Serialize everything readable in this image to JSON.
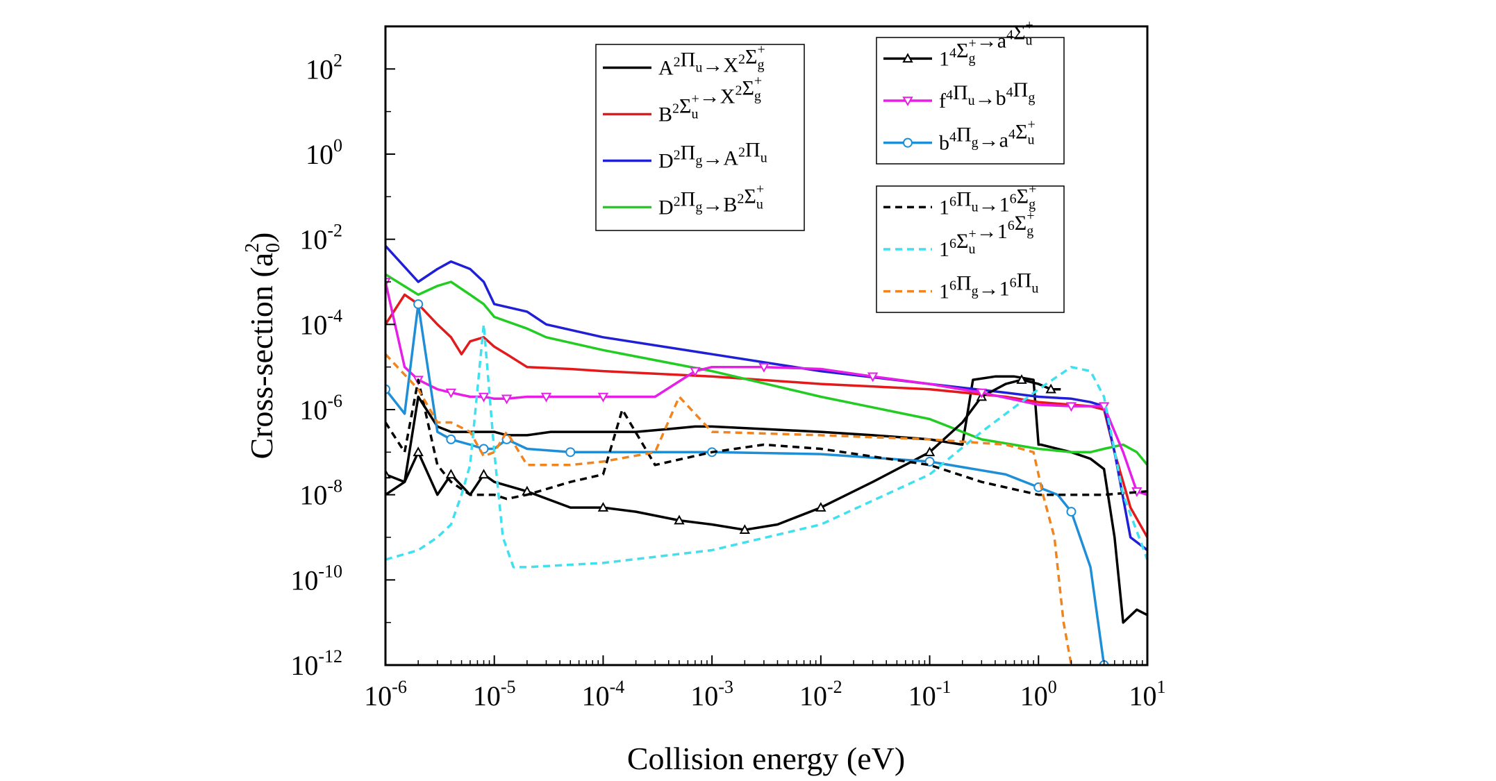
{
  "chart_data": {
    "type": "line",
    "xlabel": "Collision energy (eV)",
    "ylabel": "Cross-section (a0^2)",
    "x_scale": "log",
    "y_scale": "log",
    "xlim": [
      1e-06,
      10
    ],
    "ylim": [
      1e-12,
      1000
    ],
    "x_ticks": [
      1e-06,
      1e-05,
      0.0001,
      0.001,
      0.01,
      0.1,
      1.0,
      10.0
    ],
    "x_tick_labels": [
      {
        "base": "10",
        "exp": "-6"
      },
      {
        "base": "10",
        "exp": "-5"
      },
      {
        "base": "10",
        "exp": "-4"
      },
      {
        "base": "10",
        "exp": "-3"
      },
      {
        "base": "10",
        "exp": "-2"
      },
      {
        "base": "10",
        "exp": "-1"
      },
      {
        "base": "10",
        "exp": "0"
      },
      {
        "base": "10",
        "exp": "1"
      }
    ],
    "y_ticks": [
      100.0,
      1.0,
      0.01,
      0.0001,
      1e-06,
      1e-08,
      1e-10,
      1e-12
    ],
    "y_tick_labels": [
      {
        "base": "10",
        "exp": "2"
      },
      {
        "base": "10",
        "exp": "0"
      },
      {
        "base": "10",
        "exp": "-2"
      },
      {
        "base": "10",
        "exp": "-4"
      },
      {
        "base": "10",
        "exp": "-6"
      },
      {
        "base": "10",
        "exp": "-8"
      },
      {
        "base": "10",
        "exp": "-10"
      },
      {
        "base": "10",
        "exp": "-12"
      }
    ],
    "grid": false,
    "legend_groups": [
      "top-center",
      "top-right",
      "middle-right"
    ],
    "series": [
      {
        "key": "A2Pu_X2Sg",
        "name": "A²Πu→X²Σg+",
        "color": "#000000",
        "dash": "solid",
        "marker": "none",
        "legend_group": 0,
        "x": [
          1e-06,
          1.5e-06,
          2e-06,
          3e-06,
          4e-06,
          6e-06,
          8e-06,
          1e-05,
          1.3e-05,
          2e-05,
          3.3e-05,
          5e-05,
          0.0001,
          0.0002,
          0.0004,
          0.0007,
          0.001,
          0.003,
          0.01,
          0.03,
          0.1,
          0.2,
          0.25,
          0.4,
          0.6,
          0.9,
          1.0,
          1.05,
          2,
          3,
          4,
          5,
          6,
          8,
          10
        ],
        "y": [
          1e-08,
          2e-08,
          2e-06,
          4e-07,
          3e-07,
          3e-07,
          3e-07,
          3e-07,
          2.5e-07,
          2.5e-07,
          3e-07,
          3e-07,
          3e-07,
          3e-07,
          3.5e-07,
          4e-07,
          4e-07,
          3.5e-07,
          3e-07,
          2.5e-07,
          2e-07,
          1.5e-07,
          5e-06,
          6e-06,
          6e-06,
          5e-06,
          1.5e-07,
          1.5e-07,
          1e-07,
          7e-08,
          4e-08,
          1e-09,
          1e-11,
          2e-11,
          1.5e-11
        ]
      },
      {
        "key": "B2Su_X2Sg",
        "name": "B²Σu+→X²Σg+",
        "color": "#e31a1c",
        "dash": "solid",
        "marker": "none",
        "legend_group": 0,
        "x": [
          1e-06,
          1.5e-06,
          2e-06,
          3e-06,
          4e-06,
          5e-06,
          6e-06,
          8e-06,
          1e-05,
          1.3e-05,
          2e-05,
          5e-05,
          0.0001,
          0.001,
          0.01,
          0.1,
          0.5,
          1.0,
          2,
          3,
          4,
          5,
          7,
          10
        ],
        "y": [
          0.0001,
          0.0005,
          0.0003,
          0.0001,
          5e-05,
          2e-05,
          4e-05,
          5e-05,
          3e-05,
          2e-05,
          1e-05,
          9e-06,
          8e-06,
          6e-06,
          4e-06,
          3e-06,
          2e-06,
          1.5e-06,
          1.3e-06,
          1.2e-06,
          1e-06,
          1e-07,
          5e-09,
          1e-09
        ]
      },
      {
        "key": "D2Pg_A2Pu",
        "name": "D²Πg→A²Πu",
        "color": "#1f1fd6",
        "dash": "solid",
        "marker": "none",
        "legend_group": 0,
        "x": [
          1e-06,
          2e-06,
          3e-06,
          4e-06,
          6e-06,
          8e-06,
          1e-05,
          2e-05,
          3e-05,
          0.0001,
          0.001,
          0.01,
          0.1,
          0.5,
          1.0,
          2,
          3,
          4,
          5,
          7,
          10
        ],
        "y": [
          0.007,
          0.001,
          0.002,
          0.003,
          0.002,
          0.001,
          0.0003,
          0.0002,
          0.0001,
          5e-05,
          2e-05,
          8e-06,
          4e-06,
          2.5e-06,
          2e-06,
          1.8e-06,
          1.5e-06,
          1.2e-06,
          1e-07,
          1e-09,
          5e-10
        ]
      },
      {
        "key": "D2Pg_B2Su",
        "name": "D²Πg→B²Σu+",
        "color": "#22cc22",
        "dash": "solid",
        "marker": "none",
        "legend_group": 0,
        "x": [
          1e-06,
          2e-06,
          3e-06,
          4e-06,
          6e-06,
          8e-06,
          1e-05,
          2e-05,
          3e-05,
          0.0001,
          0.001,
          0.01,
          0.1,
          0.3,
          1.0,
          2,
          3,
          4,
          6,
          8,
          10
        ],
        "y": [
          0.0015,
          0.0005,
          0.0008,
          0.001,
          0.0005,
          0.0003,
          0.00015,
          8e-05,
          5e-05,
          2.5e-05,
          8e-06,
          2e-06,
          6e-07,
          2e-07,
          1.2e-07,
          1e-07,
          1e-07,
          1.2e-07,
          1.5e-07,
          1e-07,
          5e-08
        ]
      },
      {
        "key": "14Sg_a4Su",
        "name": "1⁴Σg+→a⁴Σu+",
        "color": "#000000",
        "dash": "solid",
        "marker": "triangle-up",
        "legend_group": 1,
        "x": [
          1e-06,
          1.5e-06,
          2e-06,
          3e-06,
          4e-06,
          6e-06,
          8e-06,
          1e-05,
          2e-05,
          5e-05,
          0.0001,
          0.0002,
          0.0005,
          0.001,
          0.002,
          0.004,
          0.01,
          0.03,
          0.1,
          0.2,
          0.3,
          0.5,
          0.7,
          1.0,
          1.3,
          1.6
        ],
        "y": [
          3e-08,
          2e-08,
          1e-07,
          1e-08,
          3e-08,
          1e-08,
          3e-08,
          2e-08,
          1.2e-08,
          5e-09,
          5e-09,
          4e-09,
          2.5e-09,
          2e-09,
          1.5e-09,
          2e-09,
          5e-09,
          2e-08,
          1e-07,
          5e-07,
          2e-06,
          4e-06,
          5e-06,
          4e-06,
          3e-06,
          3e-06
        ]
      },
      {
        "key": "f4Pu_b4Pg",
        "name": "f⁴Πu→b⁴Πg",
        "color": "#e61ee6",
        "dash": "solid",
        "marker": "triangle-down",
        "legend_group": 1,
        "x": [
          1e-06,
          1.5e-06,
          2e-06,
          3e-06,
          4e-06,
          6e-06,
          8e-06,
          1e-05,
          1.3e-05,
          2e-05,
          3e-05,
          5e-05,
          0.0001,
          0.0003,
          0.0007,
          0.001,
          0.003,
          0.01,
          0.03,
          0.1,
          0.3,
          1.0,
          2,
          3,
          4,
          6,
          8,
          10
        ],
        "y": [
          0.001,
          1e-05,
          5e-06,
          3e-06,
          2.5e-06,
          2e-06,
          2e-06,
          1.8e-06,
          1.8e-06,
          2e-06,
          2e-06,
          2e-06,
          2e-06,
          2e-06,
          8e-06,
          1e-05,
          1e-05,
          9e-06,
          6e-06,
          4e-06,
          2.5e-06,
          1.3e-06,
          1.2e-06,
          1.2e-06,
          1.2e-06,
          1e-07,
          1.2e-08,
          1e-08
        ]
      },
      {
        "key": "b4Pg_a4Su",
        "name": "b⁴Πg→a⁴Σu+",
        "color": "#1e8fd6",
        "dash": "solid",
        "marker": "circle",
        "legend_group": 1,
        "x": [
          1e-06,
          1.5e-06,
          2e-06,
          3e-06,
          4e-06,
          6e-06,
          8e-06,
          1e-05,
          1.3e-05,
          2e-05,
          5e-05,
          0.0001,
          0.001,
          0.01,
          0.1,
          0.5,
          1.0,
          1.5,
          2,
          3,
          4
        ],
        "y": [
          3e-06,
          8e-07,
          0.0003,
          3e-07,
          2e-07,
          1.5e-07,
          1.2e-07,
          1.2e-07,
          2e-07,
          1.2e-07,
          1e-07,
          1e-07,
          1e-07,
          9e-08,
          6e-08,
          3e-08,
          1.5e-08,
          1e-08,
          4e-09,
          2e-10,
          1e-12
        ]
      },
      {
        "key": "16Pu_16Sg",
        "name": "1⁶Πu→1⁶Σg+",
        "color": "#000000",
        "dash": "dashed",
        "marker": "none",
        "legend_group": 2,
        "x": [
          1e-06,
          1.5e-06,
          2e-06,
          3e-06,
          4e-06,
          6e-06,
          8e-06,
          1e-05,
          1.3e-05,
          2e-05,
          5e-05,
          0.0001,
          0.00015,
          0.0003,
          0.001,
          0.003,
          0.01,
          0.1,
          0.3,
          1.0,
          2,
          4,
          10
        ],
        "y": [
          5e-07,
          1e-07,
          5e-06,
          5e-08,
          2e-08,
          1e-08,
          1e-08,
          1e-08,
          8e-09,
          1e-08,
          2e-08,
          3e-08,
          1e-06,
          5e-08,
          1e-07,
          1.5e-07,
          1.2e-07,
          5e-08,
          2e-08,
          1e-08,
          1e-08,
          1e-08,
          1.2e-08
        ]
      },
      {
        "key": "16Su_16Sg",
        "name": "1⁶Σu+→1⁶Σg+",
        "color": "#3fe0f0",
        "dash": "dashed",
        "marker": "none",
        "legend_group": 2,
        "x": [
          1e-06,
          2e-06,
          3e-06,
          4e-06,
          5e-06,
          6e-06,
          8e-06,
          1e-05,
          1.2e-05,
          1.5e-05,
          2e-05,
          0.0001,
          0.001,
          0.01,
          0.1,
          0.3,
          1.0,
          2,
          3,
          4,
          6,
          10
        ],
        "y": [
          3e-10,
          5e-10,
          1e-09,
          2e-09,
          1e-08,
          5e-08,
          0.0001,
          1e-07,
          1e-09,
          2e-10,
          2e-10,
          2.5e-10,
          5e-10,
          2e-09,
          3e-08,
          3e-07,
          3e-06,
          1e-05,
          8e-06,
          2e-06,
          1e-08,
          3e-10
        ]
      },
      {
        "key": "16Pg_16Pu",
        "name": "1⁶Πg→1⁶Πu",
        "color": "#f0841e",
        "dash": "dashed",
        "marker": "none",
        "legend_group": 2,
        "x": [
          1e-06,
          2e-06,
          3e-06,
          4e-06,
          6e-06,
          8e-06,
          1e-05,
          1.3e-05,
          2e-05,
          5e-05,
          0.0001,
          0.0003,
          0.0005,
          0.001,
          0.01,
          0.1,
          0.5,
          0.9,
          1.1,
          1.4,
          1.7,
          2
        ],
        "y": [
          2e-05,
          3e-06,
          5e-07,
          5e-07,
          3e-07,
          8e-08,
          1e-07,
          3e-07,
          5e-08,
          5e-08,
          6e-08,
          1e-07,
          2e-06,
          3e-07,
          2.5e-07,
          2e-07,
          1.5e-07,
          1e-07,
          1e-08,
          1e-09,
          1e-11,
          1e-12
        ]
      }
    ]
  }
}
